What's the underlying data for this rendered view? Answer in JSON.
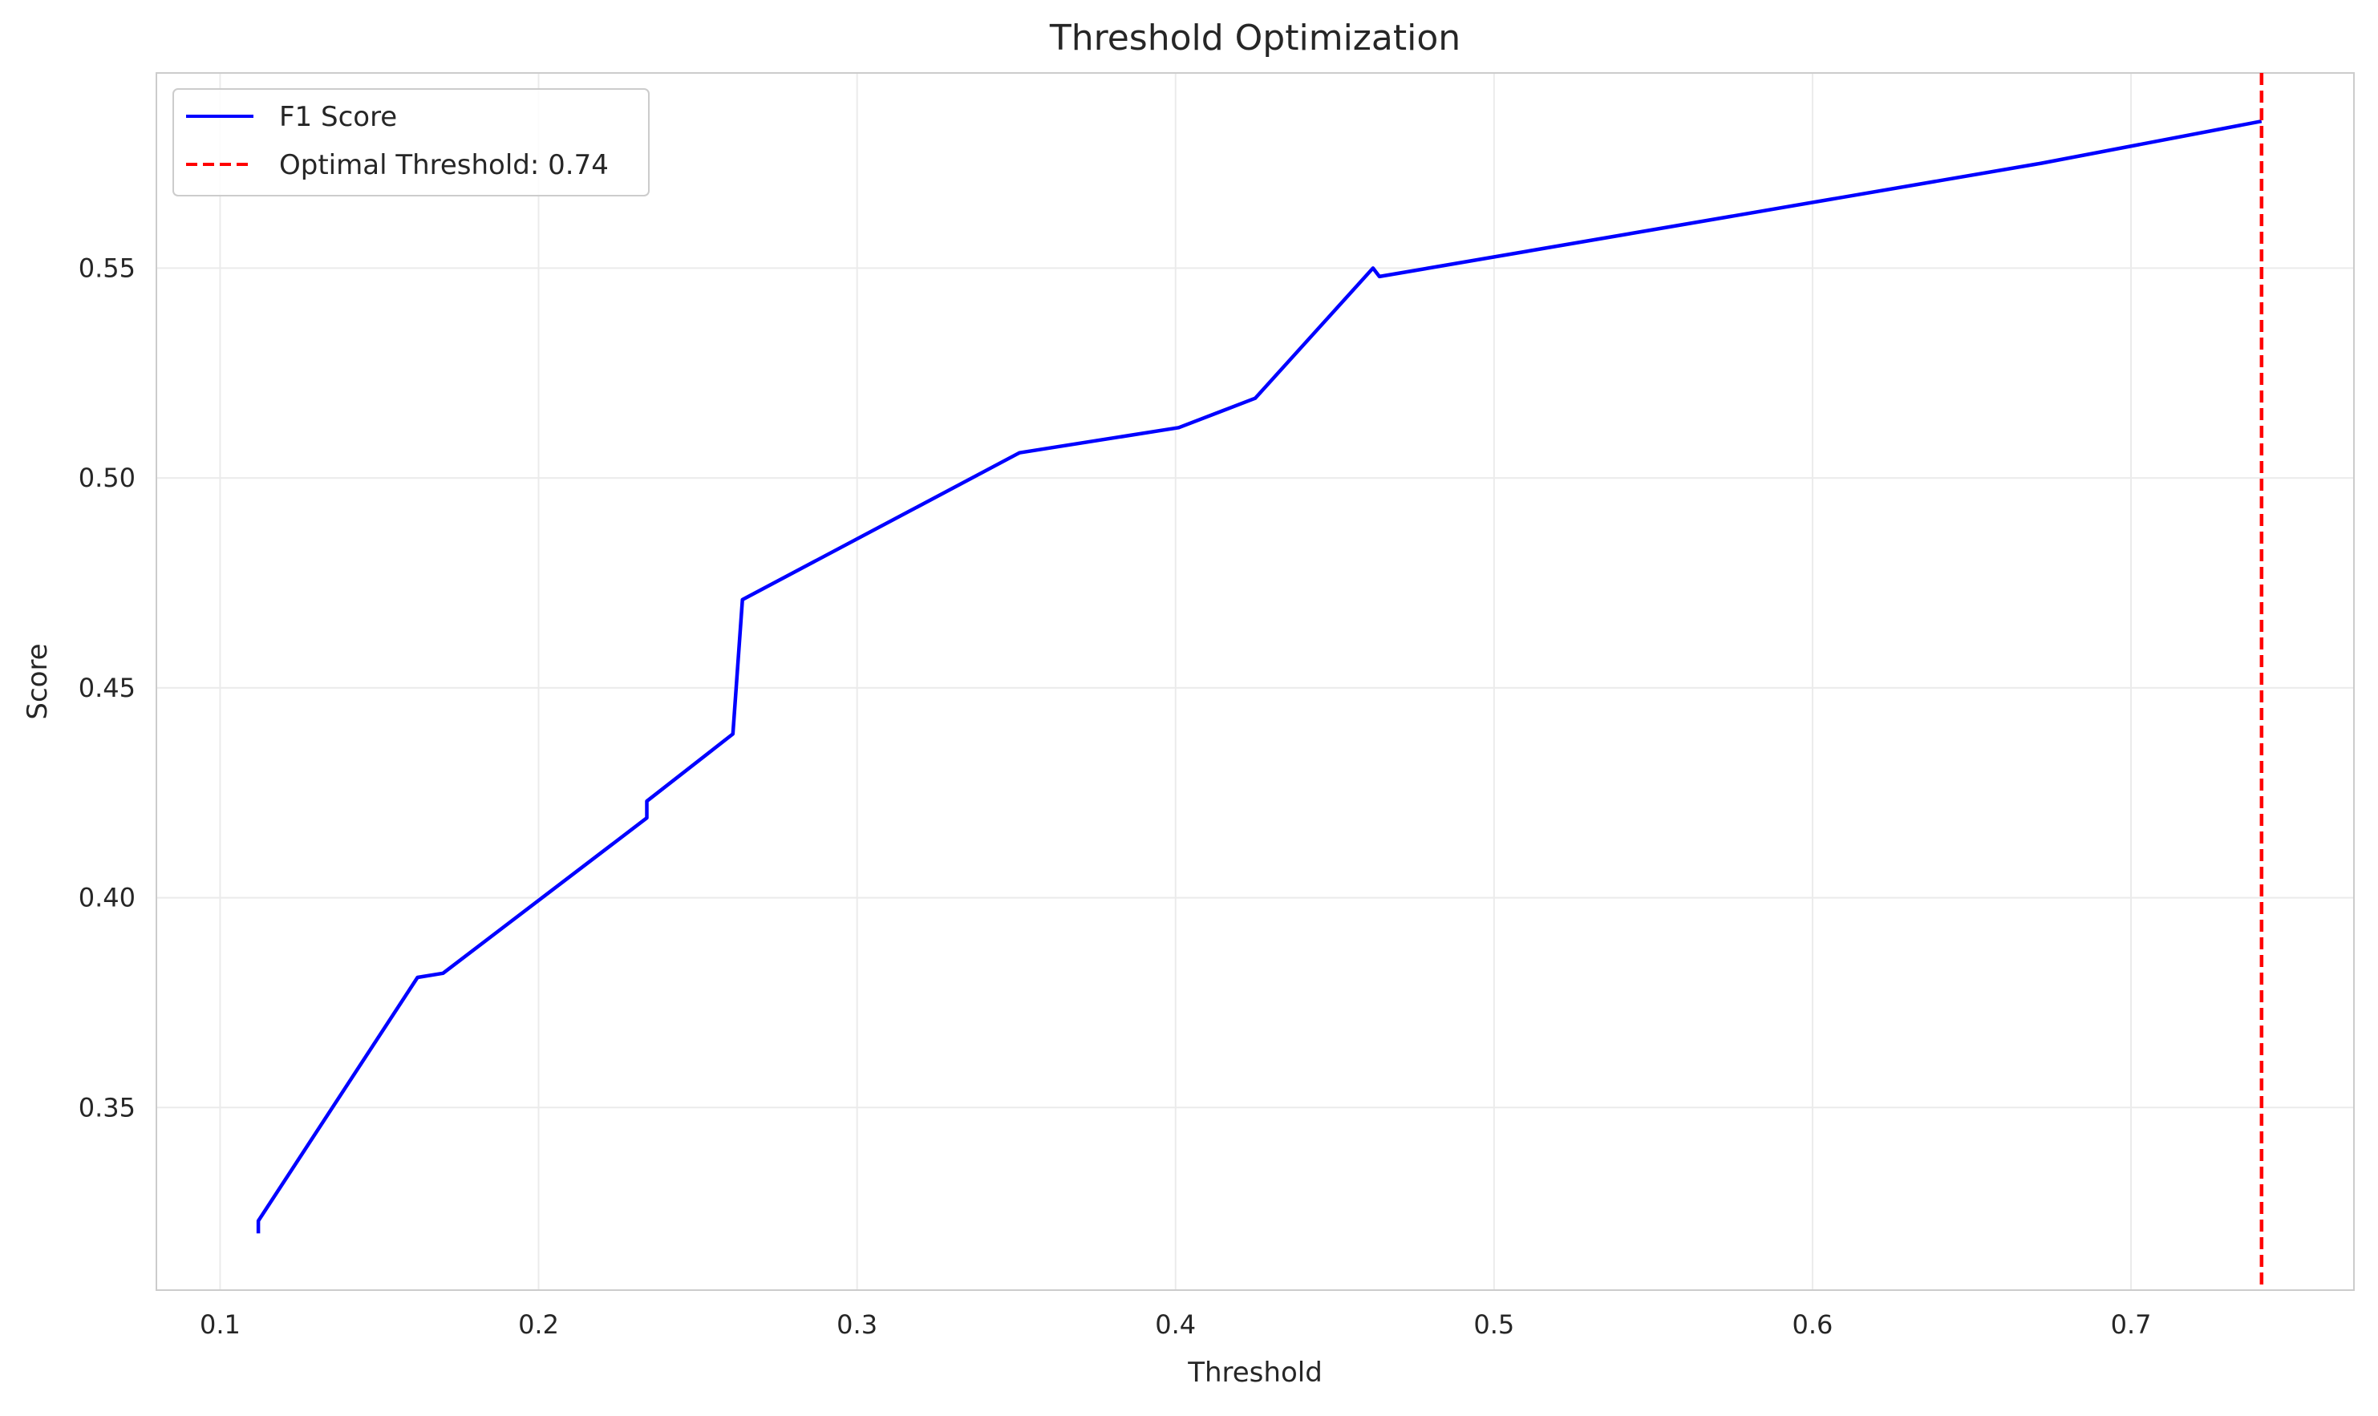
{
  "chart_data": {
    "type": "line",
    "title": "Threshold Optimization",
    "xlabel": "Threshold",
    "ylabel": "Score",
    "xlim": [
      0.08,
      0.77
    ],
    "ylim": [
      0.3065,
      0.5965
    ],
    "xticks": [
      0.1,
      0.2,
      0.3,
      0.4,
      0.5,
      0.6,
      0.7
    ],
    "xtick_labels": [
      "0.1",
      "0.2",
      "0.3",
      "0.4",
      "0.5",
      "0.6",
      "0.7"
    ],
    "yticks": [
      0.35,
      0.4,
      0.45,
      0.5,
      0.55
    ],
    "ytick_labels": [
      "0.35",
      "0.40",
      "0.45",
      "0.50",
      "0.55"
    ],
    "grid": true,
    "legend": {
      "position": "top-left",
      "entries": [
        {
          "label": "F1 Score",
          "color": "#0000ff",
          "style": "solid"
        },
        {
          "label": "Optimal Threshold: 0.74",
          "color": "#ff0000",
          "style": "dashed"
        }
      ]
    },
    "series": [
      {
        "name": "F1 Score",
        "color": "#0000ff",
        "x": [
          0.112,
          0.112,
          0.162,
          0.17,
          0.234,
          0.234,
          0.261,
          0.264,
          0.351,
          0.401,
          0.425,
          0.462,
          0.464,
          0.672,
          0.741
        ],
        "y": [
          0.32,
          0.323,
          0.381,
          0.382,
          0.419,
          0.423,
          0.439,
          0.471,
          0.506,
          0.512,
          0.519,
          0.55,
          0.548,
          0.575,
          0.585
        ]
      }
    ],
    "vlines": [
      {
        "name": "Optimal Threshold: 0.74",
        "x": 0.741,
        "color": "#ff0000",
        "style": "dashed"
      }
    ]
  }
}
